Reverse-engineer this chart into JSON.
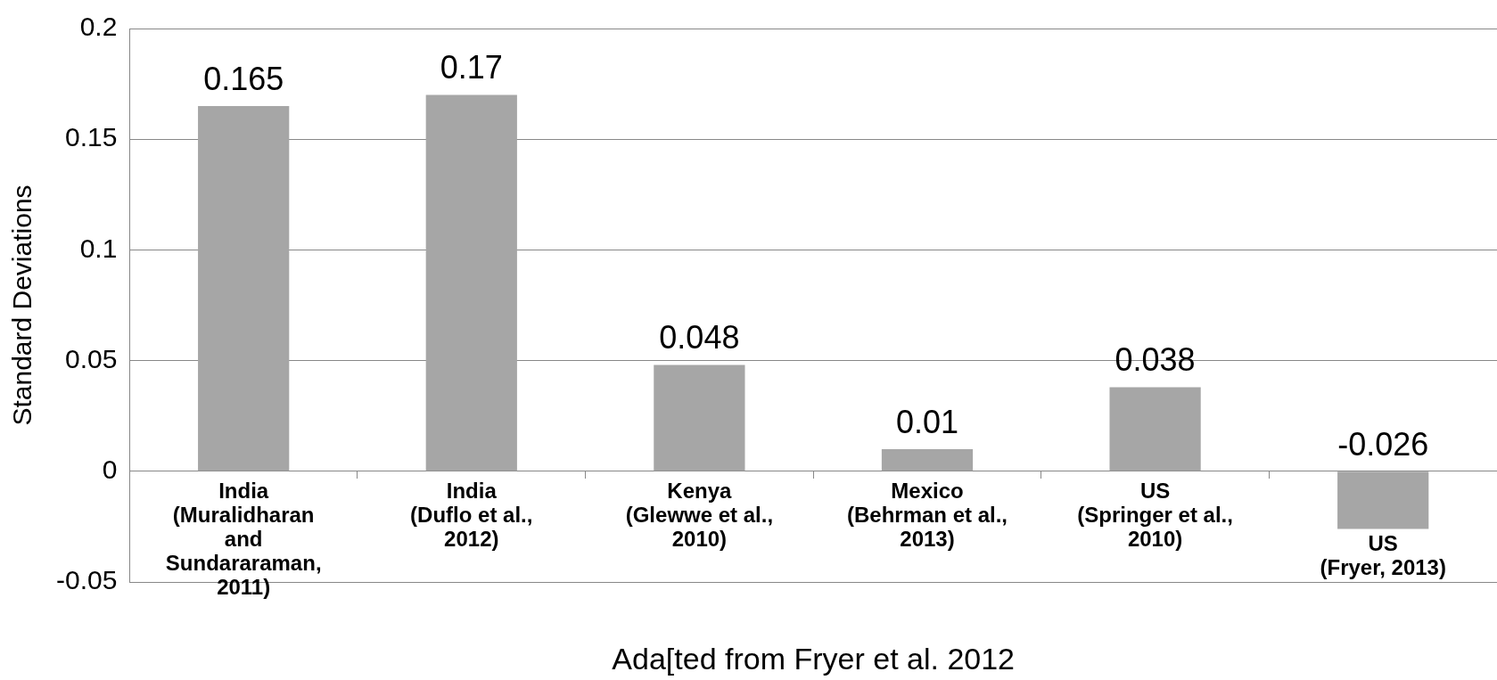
{
  "chart_data": {
    "type": "bar",
    "ylabel": "Standard Deviations",
    "xlabel": "Ada[ted from Fryer et al. 2012",
    "categories": [
      "India\n(Muralidharan\nand\nSundararaman,\n2011)",
      "India\n(Duflo et al.,\n2012)",
      "Kenya\n(Glewwe et al.,\n2010)",
      "Mexico\n(Behrman et al.,\n2013)",
      "US\n(Springer et al.,\n2010)",
      "US\n(Fryer, 2013)"
    ],
    "values": [
      0.165,
      0.17,
      0.048,
      0.01,
      0.038,
      -0.026
    ],
    "color": "#a6a6a6",
    "ylim": [
      -0.05,
      0.2
    ],
    "yticks": [
      -0.05,
      0,
      0.05,
      0.1,
      0.15,
      0.2
    ],
    "grid": "y",
    "data_labels": true,
    "legend": false
  }
}
